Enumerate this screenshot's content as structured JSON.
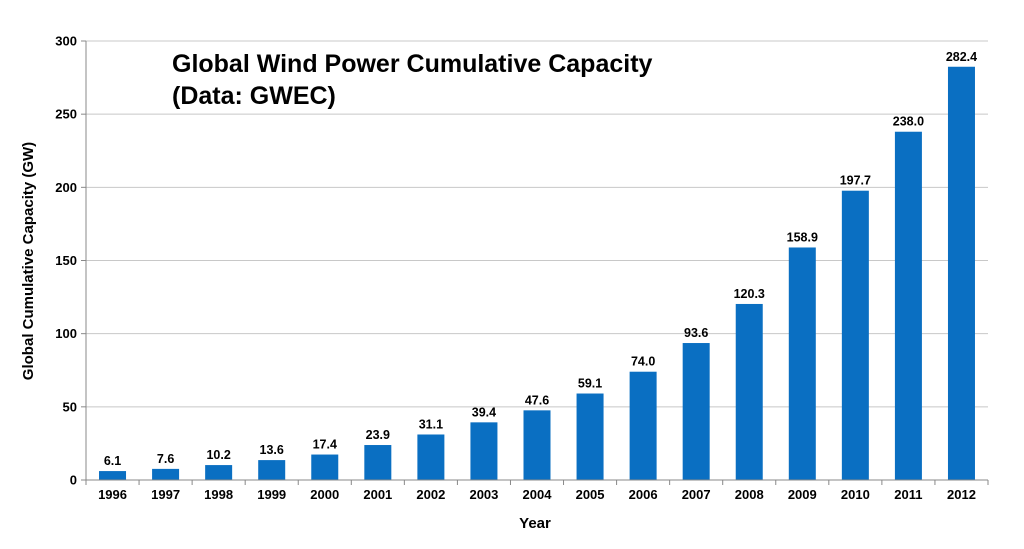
{
  "chart_data": {
    "type": "bar",
    "title": "Global Wind Power Cumulative Capacity",
    "subtitle": "(Data: GWEC)",
    "xlabel": "Year",
    "ylabel": "Global Cumulative Capacity (GW)",
    "ylim": [
      0,
      300
    ],
    "yticks": [
      0,
      50,
      100,
      150,
      200,
      250,
      300
    ],
    "grid": true,
    "bar_color": "#0A6FC2",
    "categories": [
      "1996",
      "1997",
      "1998",
      "1999",
      "2000",
      "2001",
      "2002",
      "2003",
      "2004",
      "2005",
      "2006",
      "2007",
      "2008",
      "2009",
      "2010",
      "2011",
      "2012"
    ],
    "values": [
      6.1,
      7.6,
      10.2,
      13.6,
      17.4,
      23.9,
      31.1,
      39.4,
      47.6,
      59.1,
      74.0,
      93.6,
      120.3,
      158.9,
      197.7,
      238.0,
      282.4
    ],
    "data_labels": [
      "6.1",
      "7.6",
      "10.2",
      "13.6",
      "17.4",
      "23.9",
      "31.1",
      "39.4",
      "47.6",
      "59.1",
      "74.0",
      "93.6",
      "120.3",
      "158.9",
      "197.7",
      "238.0",
      "282.4"
    ]
  }
}
